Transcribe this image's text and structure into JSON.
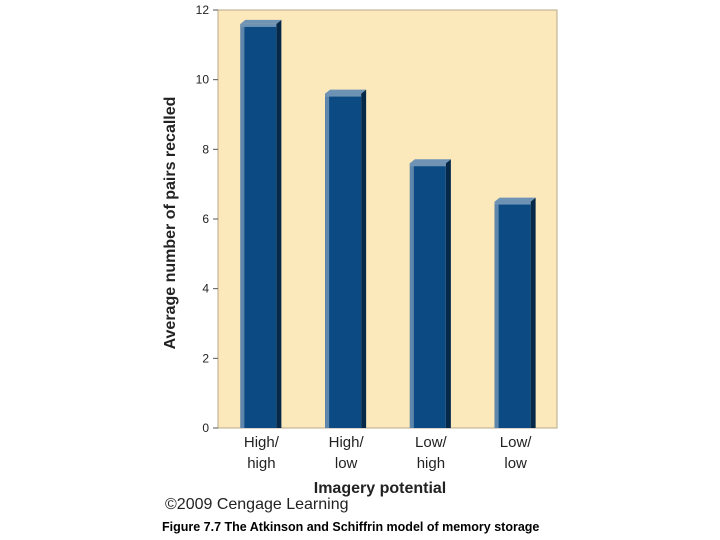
{
  "chart_data": {
    "type": "bar",
    "categories": [
      [
        "High/",
        "high"
      ],
      [
        "High/",
        "low"
      ],
      [
        "Low/",
        "high"
      ],
      [
        "Low/",
        "low"
      ]
    ],
    "values": [
      11.6,
      9.6,
      7.6,
      6.5
    ],
    "xlabel": "Imagery potential",
    "ylabel": "Average number of pairs recalled",
    "ylim": [
      0,
      12
    ],
    "yticks": [
      0,
      2,
      4,
      6,
      8,
      10,
      12
    ],
    "grid": false,
    "colors": {
      "plot_background": "#fbe8bb",
      "bar_front": "#0b4a82",
      "bar_top": "#6f93b5",
      "bar_left_highlight": "#5e86ad",
      "bar_side": "#06294a"
    }
  },
  "footer": {
    "copyright": "©2009 Cengage Learning",
    "caption": "Figure 7.7 The Atkinson and Schiffrin model of memory storage"
  }
}
